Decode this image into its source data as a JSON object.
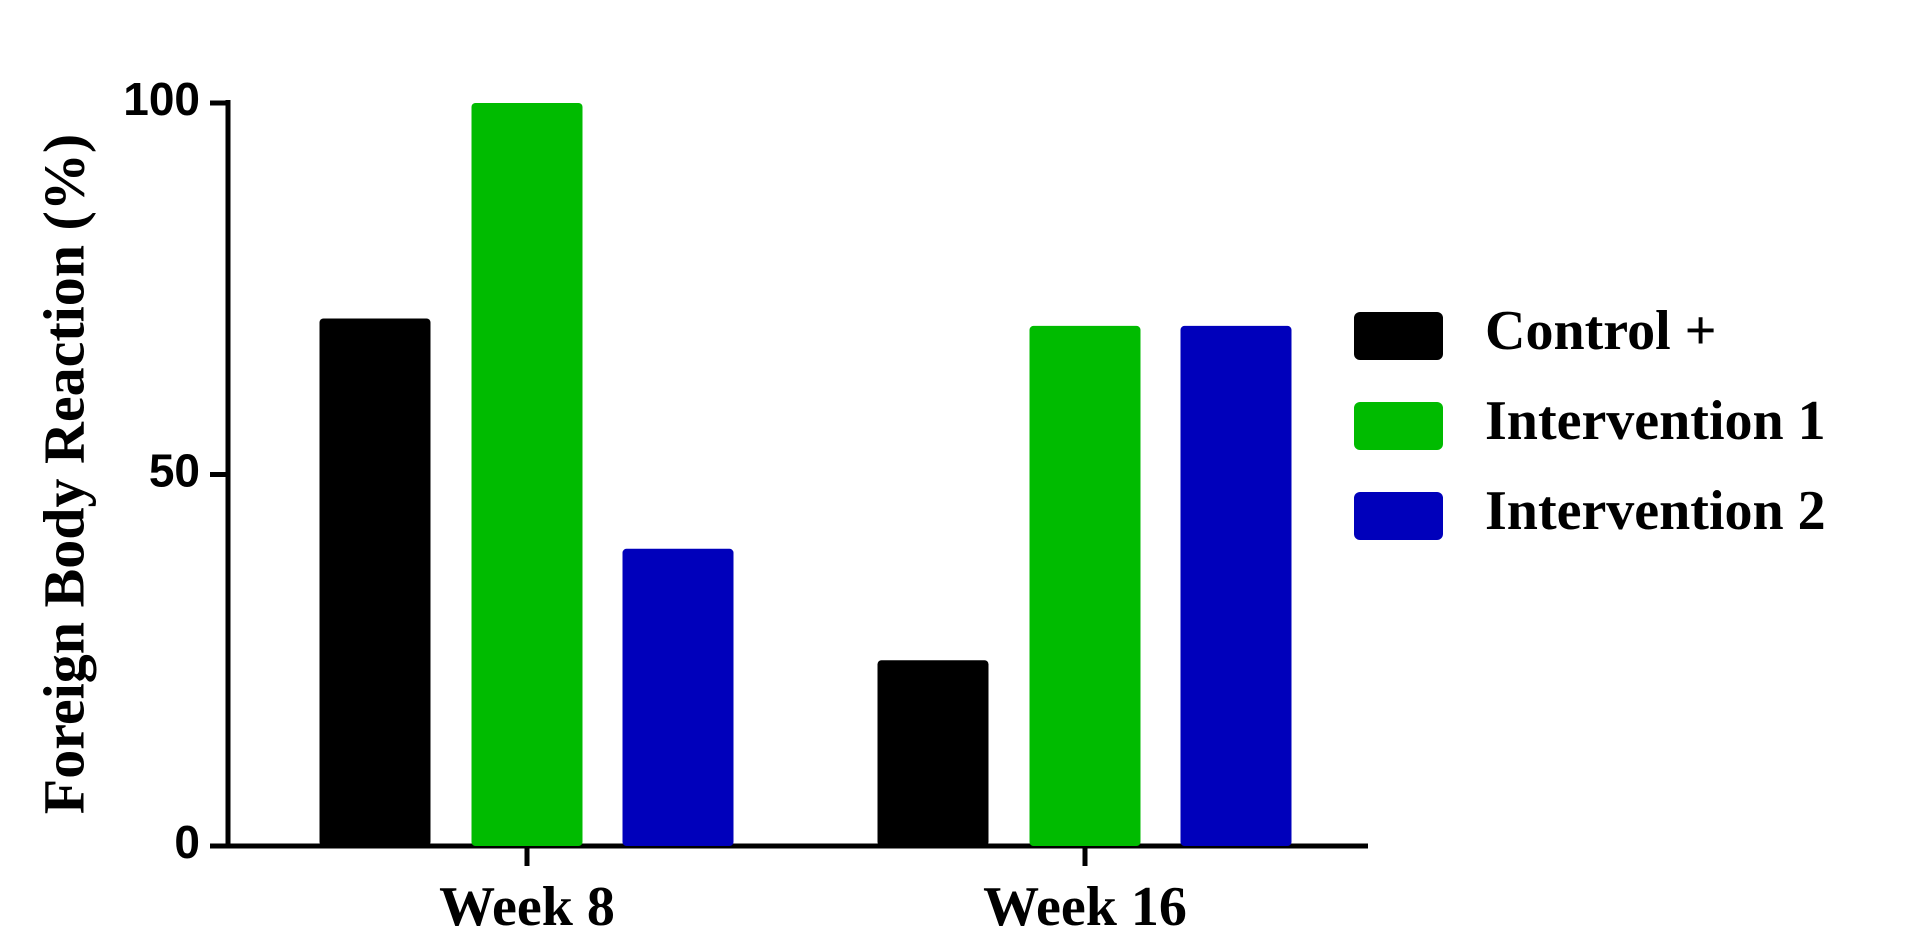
{
  "chart_data": {
    "type": "bar",
    "y_label": "Foreign Body Reaction (%)",
    "categories": [
      "Week 8",
      "Week 16"
    ],
    "series": [
      {
        "name": "Control +",
        "color": "#000000",
        "values": [
          71,
          25
        ]
      },
      {
        "name": "Intervention 1",
        "color": "#00bb00",
        "values": [
          100,
          70
        ]
      },
      {
        "name": "Intervention 2",
        "color": "#0000bb",
        "values": [
          40,
          70
        ]
      }
    ],
    "ylim": [
      0,
      100
    ],
    "yticks": [
      0,
      50,
      100
    ],
    "legend": "right"
  }
}
